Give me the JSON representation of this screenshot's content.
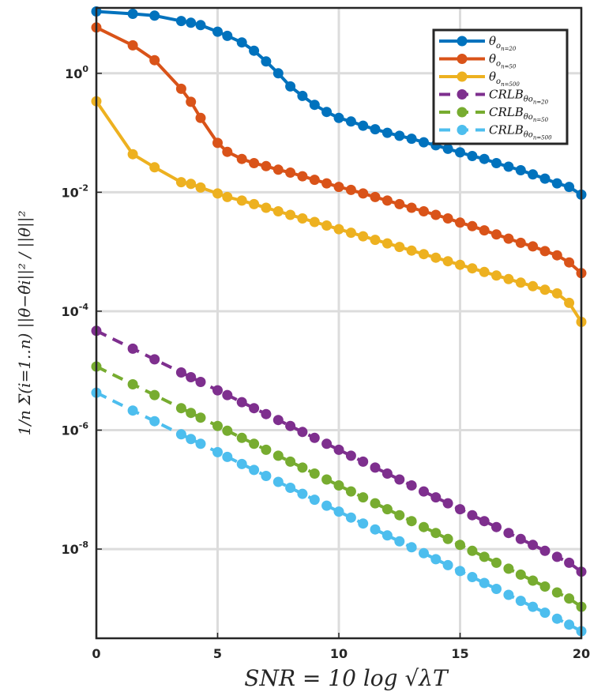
{
  "chart_data": {
    "type": "line",
    "xlabel": "SNR = 10 log √λT",
    "ylabel": "1/n Σ(i=1..n) ||θ−θ̂i||² / ||θ||²",
    "xlim": [
      0,
      20
    ],
    "ylim_log10": [
      -9.5,
      1.1
    ],
    "yscale": "log",
    "grid": true,
    "legend_position": "top-right",
    "x_ticks": [
      "0",
      "5",
      "10",
      "15",
      "20"
    ],
    "y_ticks": [
      {
        "exp": 0,
        "base": "10",
        "power": "0"
      },
      {
        "exp": -2,
        "base": "10",
        "power": "-2"
      },
      {
        "exp": -4,
        "base": "10",
        "power": "-4"
      },
      {
        "exp": -6,
        "base": "10",
        "power": "-6"
      },
      {
        "exp": -8,
        "base": "10",
        "power": "-8"
      }
    ],
    "x": [
      0,
      1.5,
      2.4,
      3.5,
      3.9,
      4.3,
      5.0,
      5.4,
      6.0,
      6.5,
      7.0,
      7.5,
      8.0,
      8.5,
      9.0,
      9.5,
      10.0,
      10.5,
      11.0,
      11.5,
      12.0,
      12.5,
      13.0,
      13.5,
      14.0,
      14.5,
      15.0,
      15.5,
      16.0,
      16.5,
      17.0,
      17.5,
      18.0,
      18.5,
      19.0,
      19.5,
      20.0
    ],
    "series": [
      {
        "name": "θo n=20",
        "color": "#0072BD",
        "dashed": false,
        "log10_values": [
          1.04,
          1.0,
          0.97,
          0.88,
          0.85,
          0.81,
          0.7,
          0.63,
          0.52,
          0.38,
          0.2,
          0.0,
          -0.22,
          -0.38,
          -0.53,
          -0.65,
          -0.75,
          -0.81,
          -0.88,
          -0.94,
          -1.0,
          -1.05,
          -1.1,
          -1.16,
          -1.21,
          -1.27,
          -1.33,
          -1.39,
          -1.44,
          -1.51,
          -1.57,
          -1.63,
          -1.7,
          -1.77,
          -1.85,
          -1.91,
          -2.04
        ]
      },
      {
        "name": "θo n=50",
        "color": "#D95319",
        "dashed": false,
        "log10_values": [
          0.77,
          0.47,
          0.22,
          -0.26,
          -0.48,
          -0.75,
          -1.17,
          -1.32,
          -1.44,
          -1.51,
          -1.56,
          -1.62,
          -1.67,
          -1.73,
          -1.79,
          -1.85,
          -1.91,
          -1.96,
          -2.02,
          -2.08,
          -2.14,
          -2.2,
          -2.26,
          -2.32,
          -2.38,
          -2.44,
          -2.51,
          -2.57,
          -2.64,
          -2.71,
          -2.78,
          -2.85,
          -2.91,
          -2.99,
          -3.06,
          -3.18,
          -3.36
        ]
      },
      {
        "name": "θo n=500",
        "color": "#EDB120",
        "dashed": false,
        "log10_values": [
          -0.47,
          -1.36,
          -1.58,
          -1.83,
          -1.86,
          -1.92,
          -2.02,
          -2.08,
          -2.14,
          -2.2,
          -2.26,
          -2.32,
          -2.38,
          -2.44,
          -2.5,
          -2.56,
          -2.62,
          -2.68,
          -2.74,
          -2.8,
          -2.86,
          -2.92,
          -2.98,
          -3.04,
          -3.1,
          -3.16,
          -3.22,
          -3.28,
          -3.34,
          -3.4,
          -3.46,
          -3.52,
          -3.58,
          -3.64,
          -3.7,
          -3.86,
          -4.18
        ]
      },
      {
        "name": "CRLB θo n=20",
        "color": "#7E2F8E",
        "dashed": true,
        "log10_values": [
          -4.33,
          -4.63,
          -4.81,
          -5.03,
          -5.11,
          -5.19,
          -5.33,
          -5.41,
          -5.53,
          -5.63,
          -5.73,
          -5.83,
          -5.93,
          -6.03,
          -6.13,
          -6.23,
          -6.33,
          -6.43,
          -6.53,
          -6.63,
          -6.73,
          -6.83,
          -6.93,
          -7.03,
          -7.13,
          -7.23,
          -7.33,
          -7.43,
          -7.53,
          -7.63,
          -7.73,
          -7.83,
          -7.93,
          -8.03,
          -8.13,
          -8.23,
          -8.38
        ]
      },
      {
        "name": "CRLB θo n=50",
        "color": "#77AC30",
        "dashed": true,
        "log10_values": [
          -4.93,
          -5.23,
          -5.41,
          -5.63,
          -5.71,
          -5.79,
          -5.93,
          -6.01,
          -6.13,
          -6.23,
          -6.33,
          -6.43,
          -6.53,
          -6.63,
          -6.73,
          -6.83,
          -6.93,
          -7.03,
          -7.13,
          -7.23,
          -7.33,
          -7.43,
          -7.53,
          -7.63,
          -7.73,
          -7.83,
          -7.93,
          -8.03,
          -8.13,
          -8.23,
          -8.33,
          -8.43,
          -8.53,
          -8.63,
          -8.73,
          -8.83,
          -8.97
        ]
      },
      {
        "name": "CRLB θo n=500",
        "color": "#4DBEEE",
        "dashed": true,
        "log10_values": [
          -5.37,
          -5.67,
          -5.85,
          -6.07,
          -6.15,
          -6.23,
          -6.37,
          -6.45,
          -6.57,
          -6.67,
          -6.77,
          -6.87,
          -6.97,
          -7.07,
          -7.17,
          -7.27,
          -7.37,
          -7.47,
          -7.57,
          -7.67,
          -7.77,
          -7.87,
          -7.97,
          -8.07,
          -8.17,
          -8.27,
          -8.37,
          -8.47,
          -8.57,
          -8.67,
          -8.77,
          -8.87,
          -8.97,
          -9.07,
          -9.17,
          -9.27,
          -9.38
        ]
      }
    ],
    "legend": [
      {
        "prefix": "θ",
        "sub": "o",
        "subsub": "n=20",
        "series": 0
      },
      {
        "prefix": "θ",
        "sub": "o",
        "subsub": "n=50",
        "series": 1
      },
      {
        "prefix": "θ",
        "sub": "o",
        "subsub": "n=500",
        "series": 2
      },
      {
        "prefix": "CRLB",
        "sub": "θo",
        "subsub": "n=20",
        "series": 3
      },
      {
        "prefix": "CRLB",
        "sub": "θo",
        "subsub": "n=50",
        "series": 4
      },
      {
        "prefix": "CRLB",
        "sub": "θo",
        "subsub": "n=500",
        "series": 5
      }
    ]
  }
}
